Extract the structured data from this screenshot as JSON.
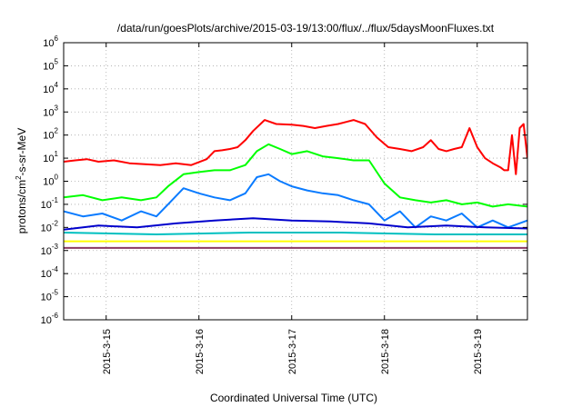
{
  "chart_data": {
    "type": "line",
    "title": "/data/run/goesPlots/archive/2015-03-19/13:00/flux/../flux/5daysMoonFluxes.txt",
    "xlabel": "Coordinated Universal Time (UTC)",
    "ylabel": {
      "prefix": "protons/cm",
      "sup": "2",
      "suffix": "-s-sr-MeV"
    },
    "y_scale": "log",
    "ylim": [
      1e-06,
      1000000.0
    ],
    "y_ticks": [
      {
        "base": "10",
        "exp": "-6",
        "value": 1e-06
      },
      {
        "base": "10",
        "exp": "-5",
        "value": 1e-05
      },
      {
        "base": "10",
        "exp": "-4",
        "value": 0.0001
      },
      {
        "base": "10",
        "exp": "-3",
        "value": 0.001
      },
      {
        "base": "10",
        "exp": "-2",
        "value": 0.01
      },
      {
        "base": "10",
        "exp": "-1",
        "value": 0.1
      },
      {
        "base": "10",
        "exp": "0",
        "value": 1.0
      },
      {
        "base": "10",
        "exp": "1",
        "value": 10.0
      },
      {
        "base": "10",
        "exp": "2",
        "value": 100.0
      },
      {
        "base": "10",
        "exp": "3",
        "value": 1000.0
      },
      {
        "base": "10",
        "exp": "4",
        "value": 10000.0
      },
      {
        "base": "10",
        "exp": "5",
        "value": 100000.0
      },
      {
        "base": "10",
        "exp": "6",
        "value": 1000000.0
      }
    ],
    "xlim": [
      "2015-03-14 13:00",
      "2015-03-19 13:00"
    ],
    "x_ticks": [
      "2015-3-15",
      "2015-3-16",
      "2015-3-17",
      "2015-3-18",
      "2015-3-19"
    ],
    "grid": true,
    "series": [
      {
        "color": "#ff0000",
        "x": [
          "2015-03-14 13:00",
          "2015-03-14 16:00",
          "2015-03-14 19:00",
          "2015-03-14 22:00",
          "2015-03-15 02:00",
          "2015-03-15 06:00",
          "2015-03-15 10:00",
          "2015-03-15 14:00",
          "2015-03-15 18:00",
          "2015-03-15 22:00",
          "2015-03-16 02:00",
          "2015-03-16 04:00",
          "2015-03-16 06:00",
          "2015-03-16 08:00",
          "2015-03-16 10:00",
          "2015-03-16 12:00",
          "2015-03-16 14:00",
          "2015-03-16 17:00",
          "2015-03-16 20:00",
          "2015-03-17 00:00",
          "2015-03-17 03:00",
          "2015-03-17 06:00",
          "2015-03-17 09:00",
          "2015-03-17 12:00",
          "2015-03-17 16:00",
          "2015-03-17 19:00",
          "2015-03-17 22:00",
          "2015-03-18 01:00",
          "2015-03-18 04:00",
          "2015-03-18 07:00",
          "2015-03-18 10:00",
          "2015-03-18 12:00",
          "2015-03-18 14:00",
          "2015-03-18 16:00",
          "2015-03-18 18:00",
          "2015-03-18 20:00",
          "2015-03-18 22:00",
          "2015-03-19 00:00",
          "2015-03-19 02:00",
          "2015-03-19 04:00",
          "2015-03-19 06:00",
          "2015-03-19 07:00",
          "2015-03-19 08:00",
          "2015-03-19 09:00",
          "2015-03-19 10:00",
          "2015-03-19 11:00",
          "2015-03-19 12:00",
          "2015-03-19 13:00"
        ],
        "values": [
          7,
          8,
          9,
          7,
          8,
          6,
          5.5,
          5,
          6,
          5,
          9,
          20,
          22,
          25,
          30,
          60,
          150,
          450,
          300,
          280,
          250,
          200,
          250,
          300,
          450,
          300,
          80,
          30,
          25,
          20,
          30,
          60,
          25,
          20,
          25,
          30,
          200,
          30,
          10,
          6,
          4,
          3,
          3,
          100,
          2,
          200,
          300,
          10
        ]
      },
      {
        "color": "#00ff00",
        "x": [
          "2015-03-14 13:00",
          "2015-03-14 18:00",
          "2015-03-14 23:00",
          "2015-03-15 04:00",
          "2015-03-15 09:00",
          "2015-03-15 13:00",
          "2015-03-15 16:00",
          "2015-03-15 20:00",
          "2015-03-16 00:00",
          "2015-03-16 04:00",
          "2015-03-16 08:00",
          "2015-03-16 12:00",
          "2015-03-16 15:00",
          "2015-03-16 18:00",
          "2015-03-16 21:00",
          "2015-03-17 00:00",
          "2015-03-17 04:00",
          "2015-03-17 08:00",
          "2015-03-17 12:00",
          "2015-03-17 16:00",
          "2015-03-17 20:00",
          "2015-03-18 00:00",
          "2015-03-18 04:00",
          "2015-03-18 08:00",
          "2015-03-18 12:00",
          "2015-03-18 16:00",
          "2015-03-18 20:00",
          "2015-03-19 00:00",
          "2015-03-19 04:00",
          "2015-03-19 08:00",
          "2015-03-19 13:00"
        ],
        "values": [
          0.2,
          0.25,
          0.15,
          0.2,
          0.15,
          0.2,
          0.6,
          2,
          2.5,
          3,
          3,
          5,
          20,
          40,
          25,
          15,
          20,
          12,
          10,
          8,
          8,
          0.8,
          0.2,
          0.15,
          0.12,
          0.15,
          0.1,
          0.12,
          0.08,
          0.1,
          0.08
        ]
      },
      {
        "color": "#0a7bff",
        "x": [
          "2015-03-14 13:00",
          "2015-03-14 18:00",
          "2015-03-14 23:00",
          "2015-03-15 04:00",
          "2015-03-15 09:00",
          "2015-03-15 13:00",
          "2015-03-15 16:00",
          "2015-03-15 20:00",
          "2015-03-16 00:00",
          "2015-03-16 04:00",
          "2015-03-16 08:00",
          "2015-03-16 12:00",
          "2015-03-16 15:00",
          "2015-03-16 18:00",
          "2015-03-16 21:00",
          "2015-03-17 00:00",
          "2015-03-17 04:00",
          "2015-03-17 08:00",
          "2015-03-17 12:00",
          "2015-03-17 16:00",
          "2015-03-17 20:00",
          "2015-03-18 00:00",
          "2015-03-18 04:00",
          "2015-03-18 08:00",
          "2015-03-18 12:00",
          "2015-03-18 16:00",
          "2015-03-18 20:00",
          "2015-03-19 00:00",
          "2015-03-19 04:00",
          "2015-03-19 08:00",
          "2015-03-19 13:00"
        ],
        "values": [
          0.05,
          0.03,
          0.04,
          0.02,
          0.05,
          0.03,
          0.1,
          0.5,
          0.3,
          0.2,
          0.15,
          0.3,
          1.5,
          2,
          1,
          0.6,
          0.4,
          0.3,
          0.25,
          0.15,
          0.1,
          0.02,
          0.05,
          0.01,
          0.03,
          0.02,
          0.04,
          0.01,
          0.02,
          0.01,
          0.02
        ]
      },
      {
        "color": "#0000cc",
        "x": [
          "2015-03-14 13:00",
          "2015-03-14 22:00",
          "2015-03-15 08:00",
          "2015-03-15 18:00",
          "2015-03-16 04:00",
          "2015-03-16 14:00",
          "2015-03-17 00:00",
          "2015-03-17 10:00",
          "2015-03-17 20:00",
          "2015-03-18 06:00",
          "2015-03-18 16:00",
          "2015-03-19 02:00",
          "2015-03-19 13:00"
        ],
        "values": [
          0.008,
          0.012,
          0.01,
          0.015,
          0.02,
          0.025,
          0.02,
          0.018,
          0.015,
          0.01,
          0.012,
          0.01,
          0.009
        ]
      },
      {
        "color": "#00c0c0",
        "x": [
          "2015-03-14 13:00",
          "2015-03-15 13:00",
          "2015-03-16 13:00",
          "2015-03-17 13:00",
          "2015-03-18 13:00",
          "2015-03-19 13:00"
        ],
        "values": [
          0.006,
          0.005,
          0.006,
          0.006,
          0.005,
          0.005
        ]
      },
      {
        "color": "#ffff00",
        "x": [
          "2015-03-14 13:00",
          "2015-03-15 13:00",
          "2015-03-16 13:00",
          "2015-03-17 13:00",
          "2015-03-18 13:00",
          "2015-03-19 13:00"
        ],
        "values": [
          0.0025,
          0.0025,
          0.0025,
          0.0025,
          0.0025,
          0.0025
        ]
      },
      {
        "color": "#8b3a62",
        "x": [
          "2015-03-14 13:00",
          "2015-03-15 13:00",
          "2015-03-16 13:00",
          "2015-03-17 13:00",
          "2015-03-18 13:00",
          "2015-03-19 13:00"
        ],
        "values": [
          0.0013,
          0.0013,
          0.0013,
          0.0013,
          0.0013,
          0.0013
        ]
      }
    ]
  }
}
